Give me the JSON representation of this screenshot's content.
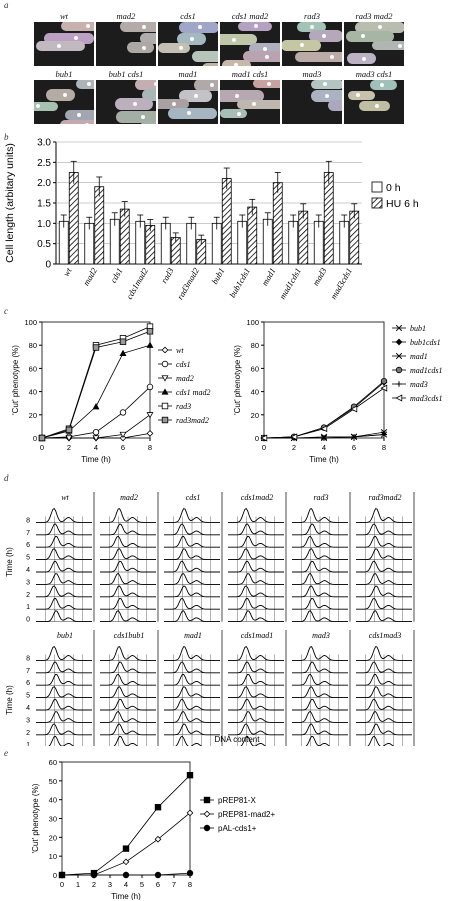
{
  "panel_letters": {
    "a": "a",
    "b": "b",
    "c": "c",
    "d": "d",
    "e": "e"
  },
  "panel_a": {
    "row1": [
      "wt",
      "mad2",
      "cds1",
      "cds1 mad2",
      "rad3",
      "rad3 mad2"
    ],
    "row2": [
      "bub1",
      "bub1 cds1",
      "mad1",
      "mad1 cds1",
      "mad3",
      "mad3 cds1"
    ]
  },
  "chart_data": [
    {
      "type": "bar",
      "ylabel": "Cell length (arbitary units)",
      "ylim": [
        0,
        3.0
      ],
      "yticks": [
        "0",
        "0.5",
        "1.0",
        "1.5",
        "2.0",
        "2.5",
        "3.0"
      ],
      "categories": [
        "wt",
        "mad2",
        "cds1",
        "cds1mad2",
        "rad3",
        "rad3mad2",
        "bub1",
        "bub1cds1",
        "mad1",
        "mad1cds1",
        "mad3",
        "mad3cds1"
      ],
      "series": [
        {
          "name": "0 h",
          "values": [
            1.05,
            1.0,
            1.1,
            1.05,
            1.0,
            1.0,
            1.0,
            1.05,
            1.1,
            1.05,
            1.05,
            1.05
          ]
        },
        {
          "name": "HU 6 h",
          "values": [
            2.25,
            1.9,
            1.35,
            0.95,
            0.65,
            0.6,
            2.1,
            1.4,
            2.0,
            1.3,
            2.25,
            1.3
          ]
        }
      ],
      "legend": "right"
    },
    {
      "type": "line",
      "ylabel": "'Cut' phenotype (%)",
      "xlabel": "Time (h)",
      "ylim": [
        0,
        100
      ],
      "yticks": [
        "0",
        "20",
        "40",
        "60",
        "80",
        "100"
      ],
      "xticks": [
        "0",
        "2",
        "4",
        "6",
        "8"
      ],
      "x": [
        0,
        2,
        4,
        6,
        8
      ],
      "series": [
        {
          "name": "wt",
          "values": [
            0,
            0,
            0,
            0,
            4
          ]
        },
        {
          "name": "cds1",
          "values": [
            0,
            1,
            5,
            22,
            44
          ]
        },
        {
          "name": "mad2",
          "values": [
            0,
            0,
            0,
            3,
            20
          ]
        },
        {
          "name": "cds1 mad2",
          "values": [
            0,
            6,
            27,
            73,
            80
          ]
        },
        {
          "name": "rad3",
          "values": [
            0,
            8,
            80,
            86,
            96
          ]
        },
        {
          "name": "rad3mad2",
          "values": [
            0,
            7,
            78,
            83,
            92
          ]
        }
      ],
      "legend": "right"
    },
    {
      "type": "line",
      "ylabel": "'Cut' phenotype (%)",
      "xlabel": "Time (h)",
      "ylim": [
        0,
        100
      ],
      "yticks": [
        "0",
        "20",
        "40",
        "60",
        "80",
        "100"
      ],
      "xticks": [
        "0",
        "2",
        "4",
        "6",
        "8"
      ],
      "x": [
        0,
        2,
        4,
        6,
        8
      ],
      "series": [
        {
          "name": "bub1",
          "values": [
            0,
            0,
            1,
            1,
            5
          ]
        },
        {
          "name": "bub1cds1",
          "values": [
            0,
            1,
            9,
            26,
            48
          ]
        },
        {
          "name": "mad1",
          "values": [
            0,
            0,
            0,
            1,
            3
          ]
        },
        {
          "name": "mad1cds1",
          "values": [
            0,
            1,
            9,
            27,
            49
          ]
        },
        {
          "name": "mad3",
          "values": [
            0,
            0,
            0,
            1,
            3
          ]
        },
        {
          "name": "mad3cds1",
          "values": [
            0,
            1,
            8,
            25,
            43
          ]
        }
      ],
      "legend": "right"
    },
    {
      "type": "line",
      "title": "",
      "xlabel": "DNA content",
      "ylabel": "Time (h)",
      "row1": [
        "wt",
        "mad2",
        "cds1",
        "cds1mad2",
        "rad3",
        "rad3mad2"
      ],
      "row2": [
        "bub1",
        "cds1bub1",
        "mad1",
        "cds1mad1",
        "mad3",
        "cds1mad3"
      ],
      "yticks": [
        "0",
        "1",
        "2",
        "3",
        "4",
        "5",
        "6",
        "7",
        "8"
      ]
    },
    {
      "type": "line",
      "ylabel": "'Cut' phenotype (%)",
      "xlabel": "Time (h)",
      "ylim": [
        0,
        60
      ],
      "yticks": [
        "0",
        "10",
        "20",
        "30",
        "40",
        "50",
        "60"
      ],
      "xticks": [
        "0",
        "1",
        "2",
        "3",
        "4",
        "5",
        "6",
        "7",
        "8"
      ],
      "x": [
        0,
        2,
        4,
        6,
        8
      ],
      "series": [
        {
          "name": "pREP81-X",
          "values": [
            0,
            1,
            14,
            36,
            53
          ]
        },
        {
          "name": "pREP81-mad2+",
          "values": [
            0,
            0,
            7,
            19,
            33
          ]
        },
        {
          "name": "pAL-cds1+",
          "values": [
            0,
            0,
            0,
            0,
            1
          ]
        }
      ],
      "legend": "right"
    }
  ]
}
